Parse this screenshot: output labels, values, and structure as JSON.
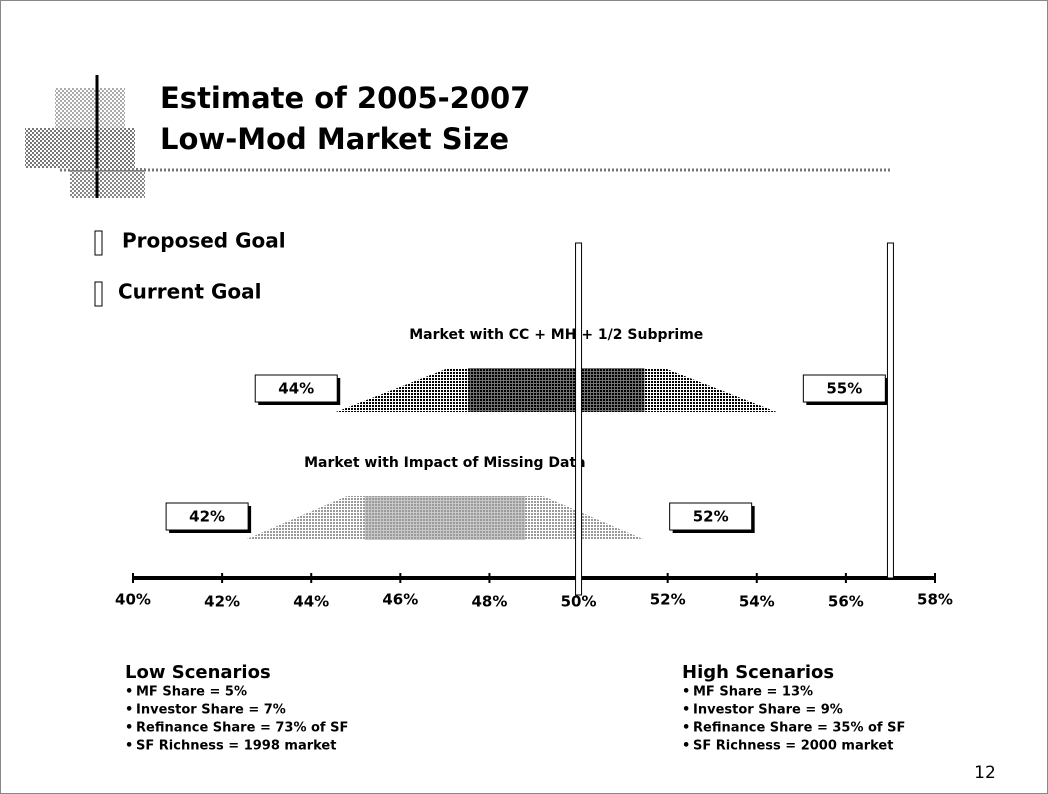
{
  "chart_data": {
    "type": "range",
    "title": [
      "Estimate of 2005-2007",
      "Low-Mod Market Size"
    ],
    "xlim": [
      40,
      58
    ],
    "xticks": [
      {
        "value": 40,
        "label": "40%"
      },
      {
        "value": 42,
        "label": "42%"
      },
      {
        "value": 44,
        "label": "44%"
      },
      {
        "value": 46,
        "label": "46%"
      },
      {
        "value": 48,
        "label": "48%"
      },
      {
        "value": 50,
        "label": "50%"
      },
      {
        "value": 52,
        "label": "52%"
      },
      {
        "value": 54,
        "label": "54%"
      },
      {
        "value": 56,
        "label": "56%"
      },
      {
        "value": 58,
        "label": "58%"
      }
    ],
    "series": [
      {
        "name": "Market with CC + MH + 1/2 Subprime",
        "color": "#000000",
        "values": [
          44,
          55
        ],
        "value_labels": [
          "44%",
          "55%"
        ]
      },
      {
        "name": "Market with Impact of Missing Data",
        "color": "#9a9a9a",
        "values": [
          42,
          52
        ],
        "value_labels": [
          "42%",
          "52%"
        ]
      }
    ],
    "goals": [
      {
        "name": "Proposed Goal",
        "value": 57
      },
      {
        "name": "Current Goal",
        "value": 50
      }
    ],
    "notes": [
      {
        "heading": "Low Scenarios",
        "items": [
          "MF Share = 5%",
          "Investor Share = 7%",
          "Refinance Share = 73% of SF",
          "SF Richness = 1998 market"
        ]
      },
      {
        "heading": "High Scenarios",
        "items": [
          "MF Share = 13%",
          "Investor Share = 9%",
          "Refinance Share = 35% of SF",
          "SF Richness = 2000 market"
        ]
      }
    ]
  },
  "page_number": "12"
}
